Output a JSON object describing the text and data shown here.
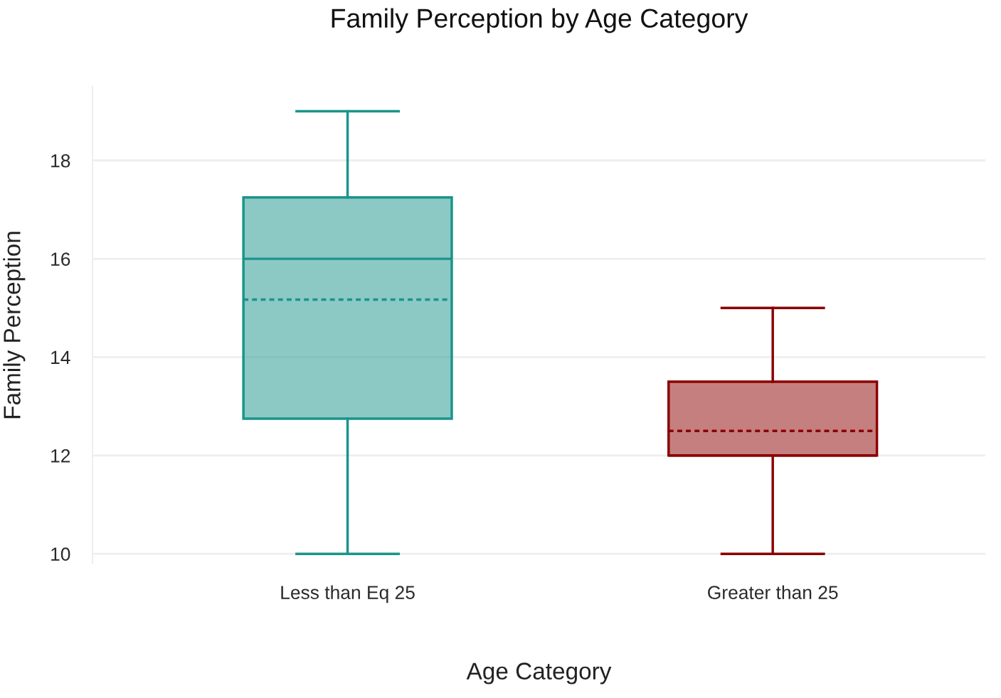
{
  "chart_data": {
    "type": "box",
    "title": "Family Perception by Age Category",
    "xlabel": "Age Category",
    "ylabel": "Family Perception",
    "categories": [
      "Less than Eq 25",
      "Greater than 25"
    ],
    "colors": [
      "#1a948c",
      "#8b0000"
    ],
    "boxes": [
      {
        "low": 10,
        "q1": 12.75,
        "median": 16,
        "q3": 17.25,
        "high": 19,
        "mean": 15.17
      },
      {
        "low": 10,
        "q1": 12,
        "median": 12,
        "q3": 13.5,
        "high": 15,
        "mean": 12.5
      }
    ],
    "ylim": [
      9.8,
      19.5
    ],
    "yticks": [
      10,
      12,
      14,
      16,
      18
    ],
    "grid": "y"
  }
}
